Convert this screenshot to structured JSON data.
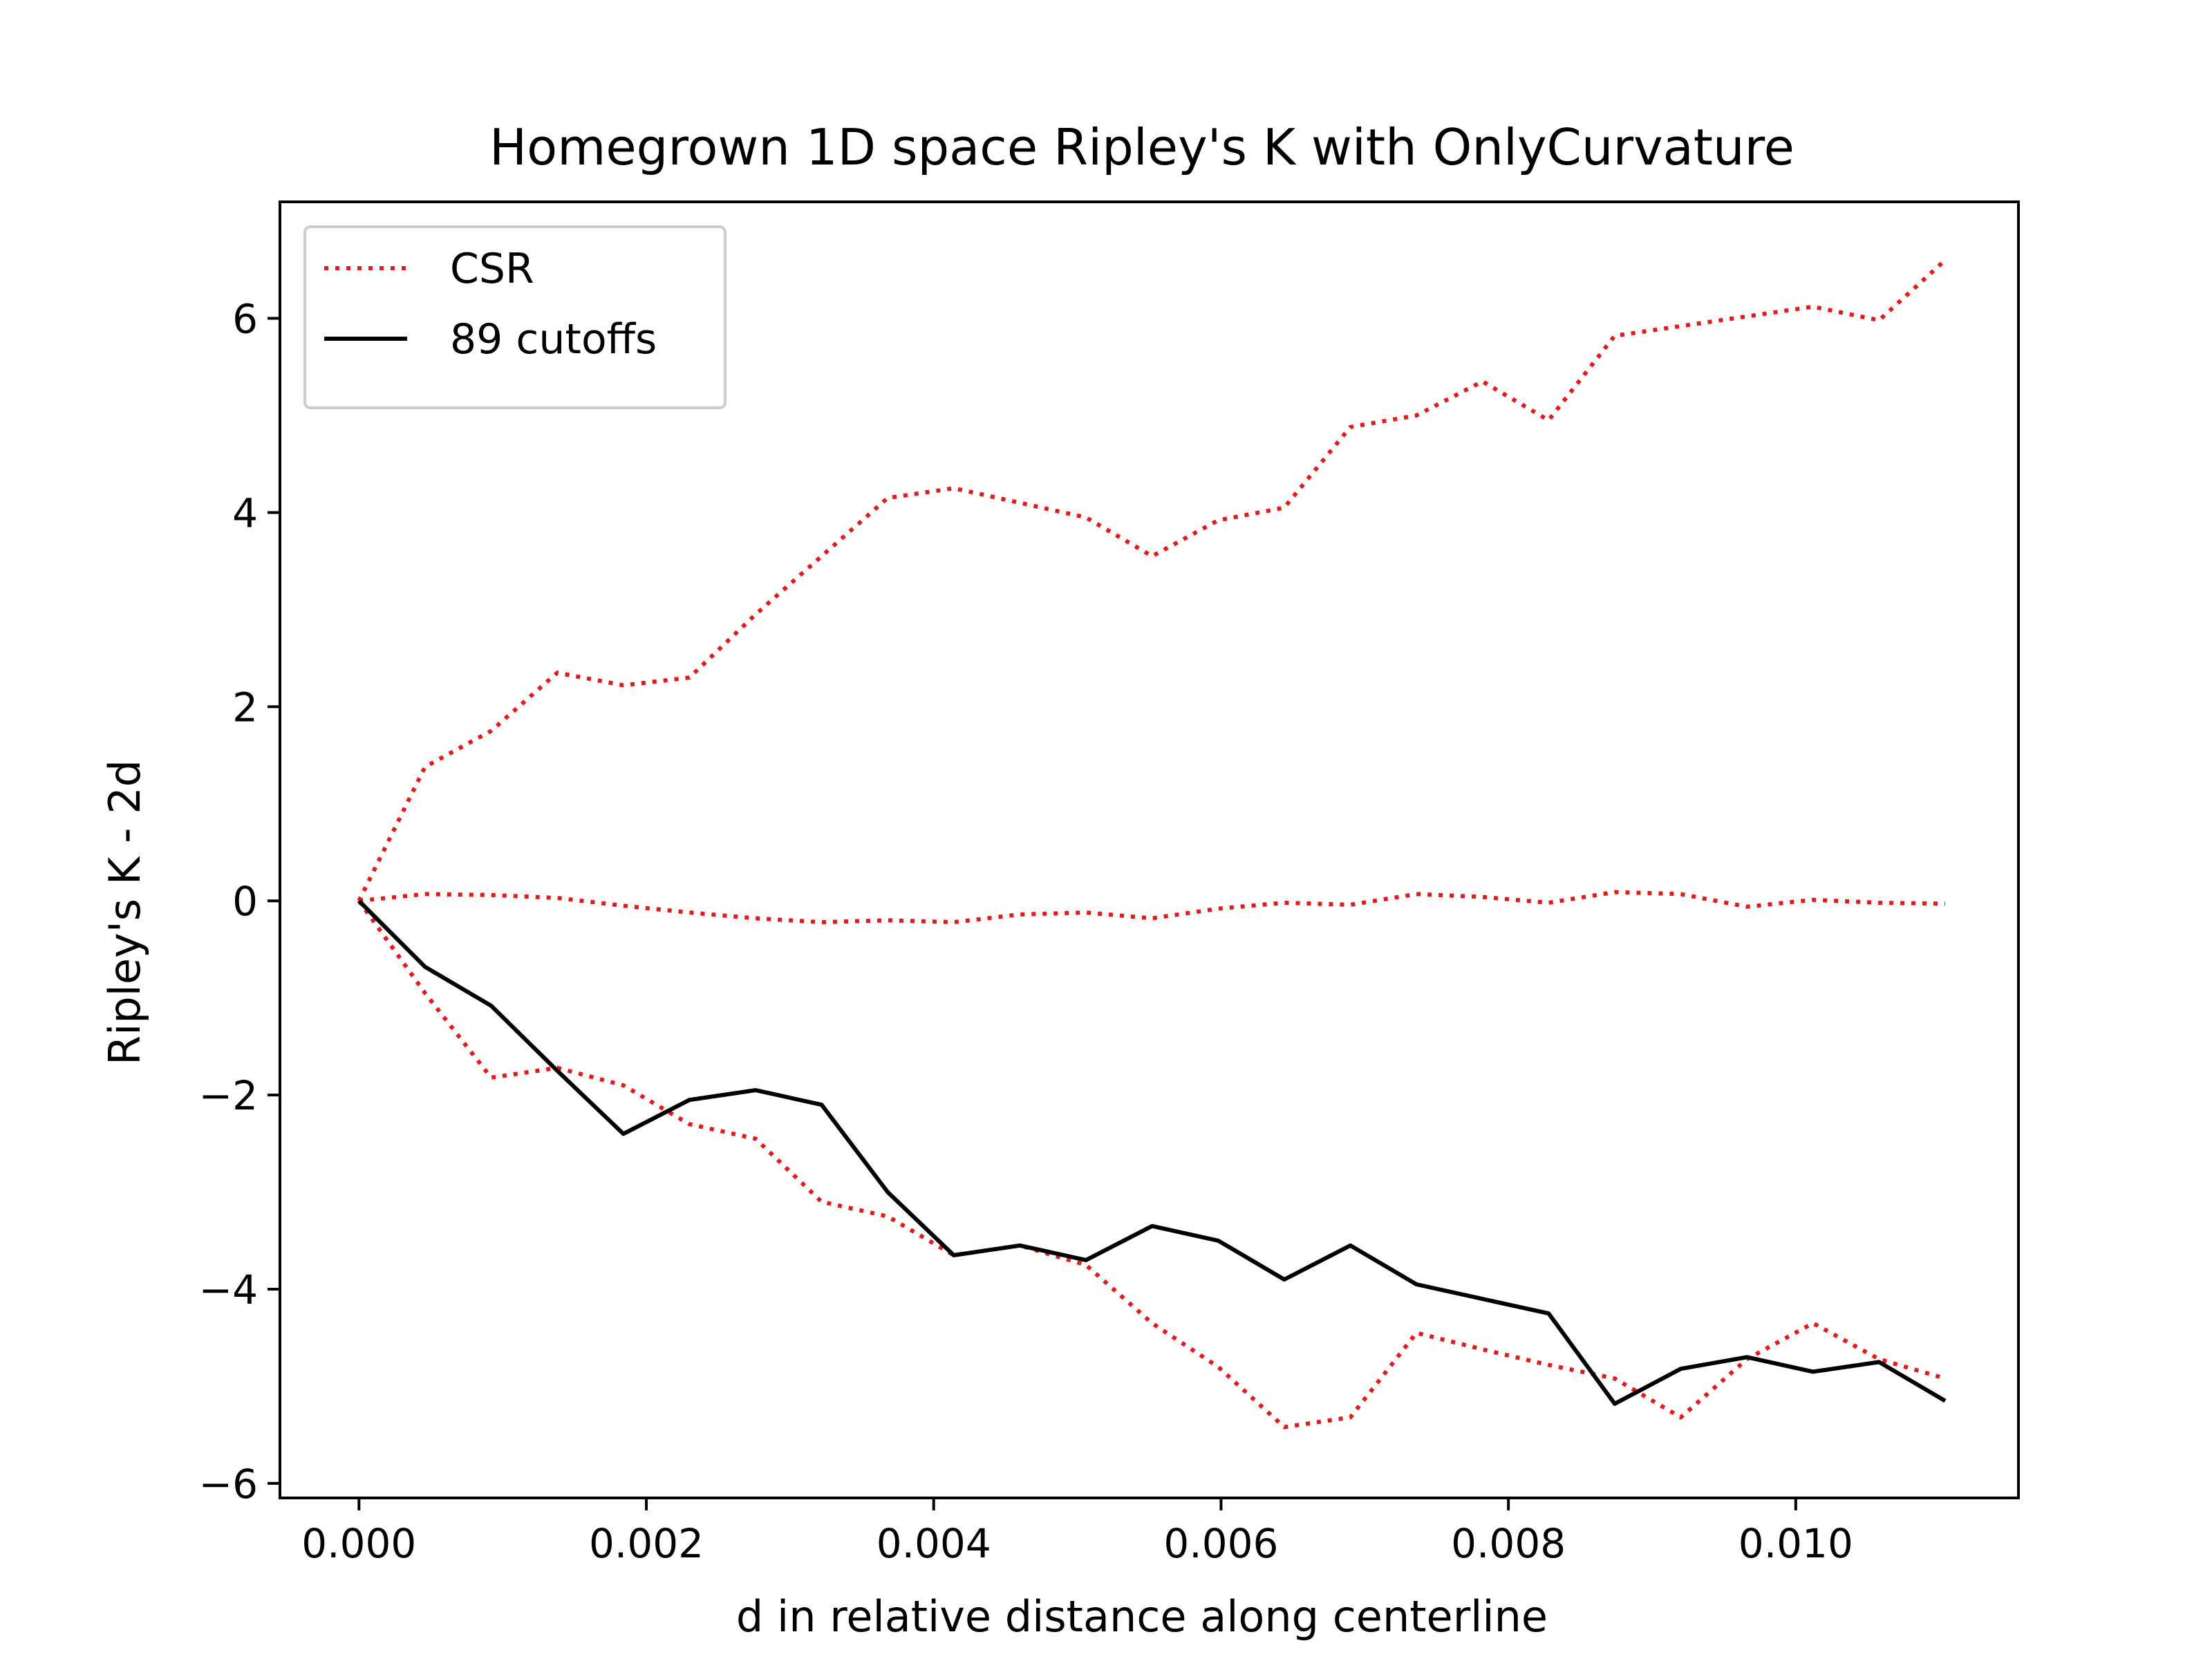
{
  "chart_data": {
    "type": "line",
    "title": "Homegrown 1D space Ripley's K with OnlyCurvature",
    "xlabel": "d in relative distance along centerline",
    "ylabel": "Ripley's K - 2d",
    "xlim": [
      -0.00055,
      0.01155
    ],
    "ylim": [
      -6.15,
      7.2
    ],
    "xticks": [
      0.0,
      0.002,
      0.004,
      0.006,
      0.008,
      0.01
    ],
    "xtick_labels": [
      "0.000",
      "0.002",
      "0.004",
      "0.006",
      "0.008",
      "0.010"
    ],
    "yticks": [
      -6,
      -4,
      -2,
      0,
      2,
      4,
      6
    ],
    "ytick_labels": [
      "−6",
      "−4",
      "−2",
      "0",
      "2",
      "4",
      "6"
    ],
    "grid": false,
    "legend_position": "upper-left",
    "x": [
      0.0,
      0.00046,
      0.00092,
      0.00138,
      0.00184,
      0.0023,
      0.00276,
      0.00322,
      0.00368,
      0.00414,
      0.0046,
      0.00506,
      0.00552,
      0.00598,
      0.00644,
      0.0069,
      0.00736,
      0.00782,
      0.00828,
      0.00874,
      0.0092,
      0.00966,
      0.01012,
      0.01058,
      0.01104
    ],
    "series": [
      {
        "name": "CSR",
        "style": "dotted",
        "color": "#e31a1c",
        "values": [
          0.0,
          1.38,
          1.75,
          2.35,
          2.22,
          2.3,
          2.95,
          3.55,
          4.15,
          4.25,
          4.1,
          3.95,
          3.55,
          3.92,
          4.05,
          4.88,
          5.0,
          5.35,
          4.95,
          5.82,
          5.92,
          6.02,
          6.12,
          5.98,
          6.6
        ]
      },
      {
        "name": "",
        "style": "dotted",
        "color": "#e31a1c",
        "values": [
          0.0,
          0.07,
          0.06,
          0.03,
          -0.05,
          -0.12,
          -0.18,
          -0.22,
          -0.2,
          -0.22,
          -0.14,
          -0.12,
          -0.18,
          -0.08,
          -0.02,
          -0.04,
          0.07,
          0.04,
          -0.02,
          0.09,
          0.07,
          -0.06,
          0.01,
          -0.02,
          -0.03
        ]
      },
      {
        "name": "",
        "style": "dotted",
        "color": "#e31a1c",
        "values": [
          0.0,
          -0.95,
          -1.82,
          -1.72,
          -1.9,
          -2.3,
          -2.45,
          -3.1,
          -3.25,
          -3.65,
          -3.55,
          -3.75,
          -4.35,
          -4.8,
          -5.42,
          -5.32,
          -4.45,
          -4.62,
          -4.78,
          -4.92,
          -5.32,
          -4.72,
          -4.35,
          -4.72,
          -4.92
        ]
      },
      {
        "name": "89 cutoffs",
        "style": "solid",
        "color": "#000000",
        "values": [
          0.0,
          -0.68,
          -1.08,
          -1.75,
          -2.4,
          -2.05,
          -1.95,
          -2.1,
          -3.0,
          -3.65,
          -3.55,
          -3.7,
          -3.35,
          -3.5,
          -3.9,
          -3.55,
          -3.95,
          -4.1,
          -4.25,
          -5.18,
          -4.82,
          -4.7,
          -4.85,
          -4.75,
          -5.15
        ]
      }
    ]
  }
}
